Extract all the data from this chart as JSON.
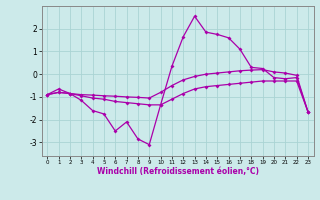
{
  "xlabel": "Windchill (Refroidissement éolien,°C)",
  "bg_color": "#cceaea",
  "grid_color": "#aad4d4",
  "line_color": "#aa00aa",
  "spine_color": "#888888",
  "xlim": [
    -0.5,
    23.5
  ],
  "ylim": [
    -3.6,
    3.0
  ],
  "yticks": [
    -3,
    -2,
    -1,
    0,
    1,
    2
  ],
  "xticks": [
    0,
    1,
    2,
    3,
    4,
    5,
    6,
    7,
    8,
    9,
    10,
    11,
    12,
    13,
    14,
    15,
    16,
    17,
    18,
    19,
    20,
    21,
    22,
    23
  ],
  "line1_x": [
    0,
    1,
    2,
    3,
    4,
    5,
    6,
    7,
    8,
    9,
    10,
    11,
    12,
    13,
    14,
    15,
    16,
    17,
    18,
    19,
    20,
    21,
    22,
    23
  ],
  "line1_y": [
    -0.9,
    -0.65,
    -0.85,
    -1.15,
    -1.6,
    -1.75,
    -2.5,
    -2.1,
    -2.85,
    -3.1,
    -1.35,
    0.35,
    1.65,
    2.55,
    1.85,
    1.75,
    1.6,
    1.1,
    0.3,
    0.25,
    -0.15,
    -0.2,
    -0.15,
    -1.65
  ],
  "line2_x": [
    0,
    1,
    2,
    3,
    4,
    5,
    6,
    7,
    8,
    9,
    10,
    11,
    12,
    13,
    14,
    15,
    16,
    17,
    18,
    19,
    20,
    21,
    22,
    23
  ],
  "line2_y": [
    -0.9,
    -0.8,
    -0.85,
    -0.95,
    -1.05,
    -1.1,
    -1.2,
    -1.25,
    -1.3,
    -1.35,
    -1.35,
    -1.1,
    -0.85,
    -0.65,
    -0.55,
    -0.5,
    -0.45,
    -0.4,
    -0.35,
    -0.3,
    -0.3,
    -0.3,
    -0.3,
    -1.65
  ],
  "line3_x": [
    0,
    1,
    2,
    3,
    4,
    5,
    6,
    7,
    8,
    9,
    10,
    11,
    12,
    13,
    14,
    15,
    16,
    17,
    18,
    19,
    20,
    21,
    22,
    23
  ],
  "line3_y": [
    -0.9,
    -0.8,
    -0.85,
    -0.9,
    -0.92,
    -0.95,
    -0.97,
    -1.0,
    -1.02,
    -1.05,
    -0.8,
    -0.5,
    -0.25,
    -0.1,
    0.0,
    0.05,
    0.1,
    0.15,
    0.18,
    0.2,
    0.1,
    0.05,
    -0.05,
    -1.65
  ]
}
